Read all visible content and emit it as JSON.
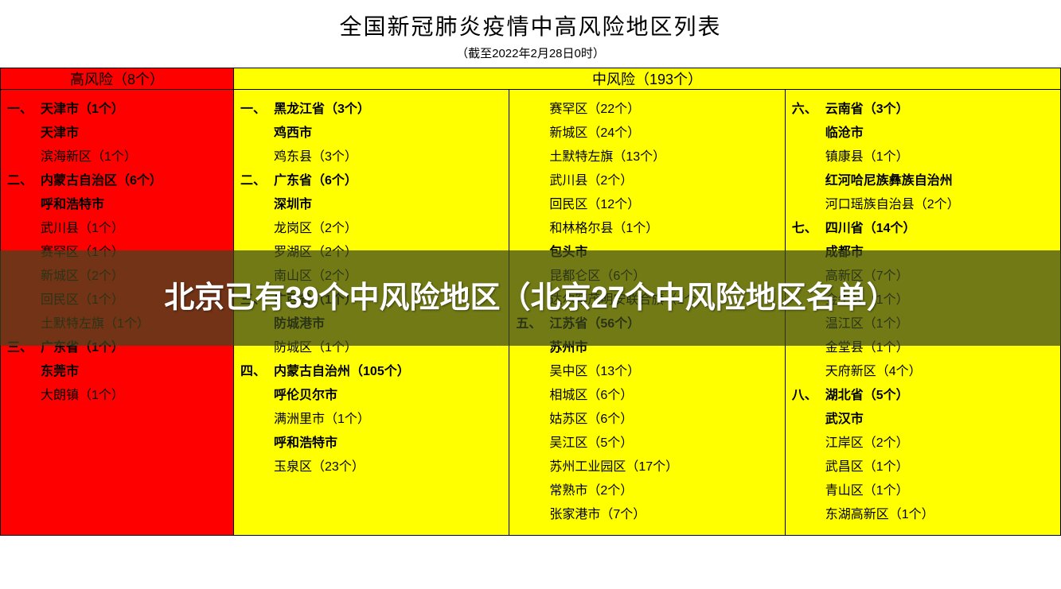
{
  "header": {
    "title": "全国新冠肺炎疫情中高风险地区列表",
    "subtitle": "（截至2022年2月28日0时）"
  },
  "colors": {
    "high_risk_bg": "#ff0000",
    "mid_risk_bg": "#ffff00",
    "border": "#000000",
    "text": "#000000",
    "overlay_bg": "rgba(60,70,30,0.72)",
    "overlay_text": "#ffffff"
  },
  "table_headers": {
    "high": "高风险（8个）",
    "mid": "中风险（193个）"
  },
  "high_risk": [
    {
      "prefix": "一、",
      "text": "天津市（1个）",
      "bold": true
    },
    {
      "prefix": "",
      "text": "天津市",
      "bold": true,
      "indent": true
    },
    {
      "prefix": "",
      "text": "滨海新区（1个）",
      "bold": false,
      "indent": true
    },
    {
      "prefix": "二、",
      "text": "内蒙古自治区（6个）",
      "bold": true
    },
    {
      "prefix": "",
      "text": "呼和浩特市",
      "bold": true,
      "indent": true
    },
    {
      "prefix": "",
      "text": "武川县（1个）",
      "bold": false,
      "indent": true
    },
    {
      "prefix": "",
      "text": "赛罕区（1个）",
      "bold": false,
      "indent": true
    },
    {
      "prefix": "",
      "text": "新城区（2个）",
      "bold": false,
      "indent": true
    },
    {
      "prefix": "",
      "text": "回民区（1个）",
      "bold": false,
      "indent": true
    },
    {
      "prefix": "",
      "text": "土默特左旗（1个）",
      "bold": false,
      "indent": true
    },
    {
      "prefix": "三、",
      "text": "广东省（1个）",
      "bold": true
    },
    {
      "prefix": "",
      "text": "东莞市",
      "bold": true,
      "indent": true
    },
    {
      "prefix": "",
      "text": "大朗镇（1个）",
      "bold": false,
      "indent": true
    }
  ],
  "mid_risk_col1": [
    {
      "prefix": "一、",
      "text": "黑龙江省（3个）",
      "bold": true
    },
    {
      "prefix": "",
      "text": "鸡西市",
      "bold": true,
      "indent": true
    },
    {
      "prefix": "",
      "text": "鸡东县（3个）",
      "bold": false,
      "indent": true
    },
    {
      "prefix": "二、",
      "text": "广东省（6个）",
      "bold": true
    },
    {
      "prefix": "",
      "text": "深圳市",
      "bold": true,
      "indent": true
    },
    {
      "prefix": "",
      "text": "龙岗区（2个）",
      "bold": false,
      "indent": true
    },
    {
      "prefix": "",
      "text": "罗湖区（2个）",
      "bold": false,
      "indent": true
    },
    {
      "prefix": "",
      "text": "南山区（2个）",
      "bold": false,
      "indent": true
    },
    {
      "prefix": "三、",
      "text": "广西省（1个）",
      "bold": true
    },
    {
      "prefix": "",
      "text": "防城港市",
      "bold": true,
      "indent": true
    },
    {
      "prefix": "",
      "text": "防城区（1个）",
      "bold": false,
      "indent": true
    },
    {
      "prefix": "四、",
      "text": "内蒙古自治州（105个）",
      "bold": true
    },
    {
      "prefix": "",
      "text": "呼伦贝尔市",
      "bold": true,
      "indent": true
    },
    {
      "prefix": "",
      "text": "满洲里市（1个）",
      "bold": false,
      "indent": true
    },
    {
      "prefix": "",
      "text": "呼和浩特市",
      "bold": true,
      "indent": true
    },
    {
      "prefix": "",
      "text": "玉泉区（23个）",
      "bold": false,
      "indent": true
    }
  ],
  "mid_risk_col2": [
    {
      "prefix": "",
      "text": "赛罕区（22个）",
      "bold": false,
      "indent": true
    },
    {
      "prefix": "",
      "text": "新城区（24个）",
      "bold": false,
      "indent": true
    },
    {
      "prefix": "",
      "text": "土默特左旗（13个）",
      "bold": false,
      "indent": true
    },
    {
      "prefix": "",
      "text": "武川县（2个）",
      "bold": false,
      "indent": true
    },
    {
      "prefix": "",
      "text": "回民区（12个）",
      "bold": false,
      "indent": true
    },
    {
      "prefix": "",
      "text": "和林格尔县（1个）",
      "bold": false,
      "indent": true
    },
    {
      "prefix": "",
      "text": "包头市",
      "bold": true,
      "indent": true
    },
    {
      "prefix": "",
      "text": "昆都仑区（6个）",
      "bold": false,
      "indent": true
    },
    {
      "prefix": "",
      "text": "达尔罕茂明安联合旗（1个）",
      "bold": false,
      "indent": true
    },
    {
      "prefix": "五、",
      "text": "江苏省（56个）",
      "bold": true
    },
    {
      "prefix": "",
      "text": "苏州市",
      "bold": true,
      "indent": true
    },
    {
      "prefix": "",
      "text": "吴中区（13个）",
      "bold": false,
      "indent": true
    },
    {
      "prefix": "",
      "text": "相城区（6个）",
      "bold": false,
      "indent": true
    },
    {
      "prefix": "",
      "text": "姑苏区（6个）",
      "bold": false,
      "indent": true
    },
    {
      "prefix": "",
      "text": "吴江区（5个）",
      "bold": false,
      "indent": true
    },
    {
      "prefix": "",
      "text": "苏州工业园区（17个）",
      "bold": false,
      "indent": true
    },
    {
      "prefix": "",
      "text": "常熟市（2个）",
      "bold": false,
      "indent": true
    },
    {
      "prefix": "",
      "text": "张家港市（7个）",
      "bold": false,
      "indent": true
    }
  ],
  "mid_risk_col3": [
    {
      "prefix": "六、",
      "text": "云南省（3个）",
      "bold": true
    },
    {
      "prefix": "",
      "text": "临沧市",
      "bold": true,
      "indent": true
    },
    {
      "prefix": "",
      "text": "镇康县（1个）",
      "bold": false,
      "indent": true
    },
    {
      "prefix": "",
      "text": "红河哈尼族彝族自治州",
      "bold": true,
      "indent": true
    },
    {
      "prefix": "",
      "text": "河口瑶族自治县（2个）",
      "bold": false,
      "indent": true
    },
    {
      "prefix": "七、",
      "text": "四川省（14个）",
      "bold": true
    },
    {
      "prefix": "",
      "text": "成都市",
      "bold": true,
      "indent": true
    },
    {
      "prefix": "",
      "text": "高新区（7个）",
      "bold": false,
      "indent": true
    },
    {
      "prefix": "",
      "text": "金牛区（1个）",
      "bold": false,
      "indent": true
    },
    {
      "prefix": "",
      "text": "温江区（1个）",
      "bold": false,
      "indent": true
    },
    {
      "prefix": "",
      "text": "金堂县（1个）",
      "bold": false,
      "indent": true
    },
    {
      "prefix": "",
      "text": "天府新区（4个）",
      "bold": false,
      "indent": true
    },
    {
      "prefix": "八、",
      "text": "湖北省（5个）",
      "bold": true
    },
    {
      "prefix": "",
      "text": "武汉市",
      "bold": true,
      "indent": true
    },
    {
      "prefix": "",
      "text": "江岸区（2个）",
      "bold": false,
      "indent": true
    },
    {
      "prefix": "",
      "text": "武昌区（1个）",
      "bold": false,
      "indent": true
    },
    {
      "prefix": "",
      "text": "青山区（1个）",
      "bold": false,
      "indent": true
    },
    {
      "prefix": "",
      "text": "东湖高新区（1个）",
      "bold": false,
      "indent": true
    }
  ],
  "overlay": {
    "text": "北京已有39个中风险地区（北京27个中风险地区名单）"
  }
}
